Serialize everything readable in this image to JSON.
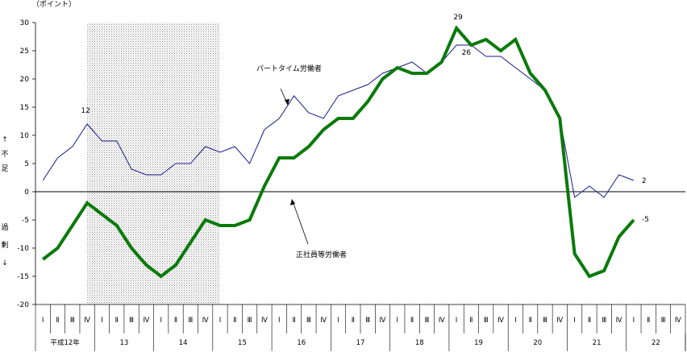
{
  "chart_data": {
    "type": "line",
    "unit_label": "（ポイント）",
    "y_ticks": [
      30,
      25,
      20,
      15,
      10,
      5,
      0,
      -5,
      -10,
      -15,
      -20
    ],
    "ylim": [
      -20,
      30
    ],
    "shortage_label": [
      "↑",
      "不",
      "足"
    ],
    "surplus_label": [
      "過",
      "剰",
      "↓"
    ],
    "quarter_labels": [
      "Ⅰ",
      "Ⅱ",
      "Ⅲ",
      "Ⅳ"
    ],
    "year_labels": [
      "平成12年",
      "13",
      "14",
      "15",
      "16",
      "17",
      "18",
      "19",
      "20",
      "21",
      "22"
    ],
    "recession_shading": {
      "from_index": 3,
      "to_index": 12
    },
    "series": [
      {
        "name": "パートタイム労働者",
        "color": "#1a1a8c",
        "values": [
          2,
          6,
          8,
          12,
          9,
          9,
          4,
          3,
          3,
          5,
          5,
          8,
          7,
          8,
          5,
          11,
          13,
          17,
          14,
          13,
          17,
          18,
          19,
          21,
          22,
          23,
          21,
          23,
          26,
          26,
          24,
          24,
          22,
          20,
          18,
          13,
          -1,
          1,
          -1,
          3,
          2
        ]
      },
      {
        "name": "正社員等労働者",
        "color": "#0a7a0a",
        "values": [
          -12,
          -10,
          -6,
          -2,
          -4,
          -6,
          -10,
          -13,
          -15,
          -13,
          -9,
          -5,
          -6,
          -6,
          -5,
          1,
          6,
          6,
          8,
          11,
          13,
          13,
          16,
          20,
          22,
          21,
          21,
          23,
          29,
          26,
          27,
          25,
          27,
          21,
          18,
          13,
          -11,
          -15,
          -14,
          -8,
          -5
        ]
      }
    ],
    "data_labels": [
      {
        "text": "12"
      },
      {
        "text": "29"
      },
      {
        "text": "26"
      },
      {
        "text": "2"
      },
      {
        "text": "-5"
      }
    ]
  }
}
